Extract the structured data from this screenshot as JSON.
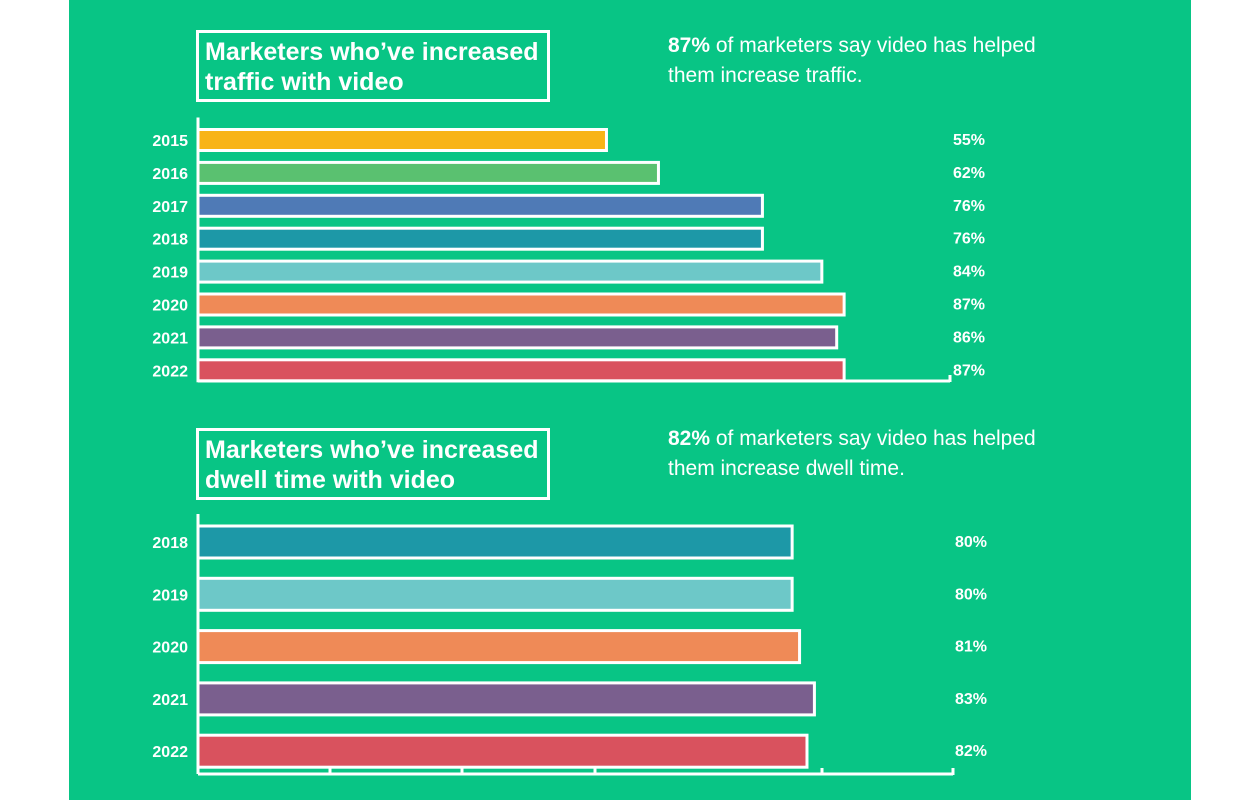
{
  "chart_data": [
    {
      "type": "bar",
      "orientation": "horizontal",
      "title_lines": [
        "Marketers who’ve increased",
        "traffic with video"
      ],
      "headline_value": "87%",
      "headline_text_lines": [
        "of marketers say video has helped",
        "them increase traffic."
      ],
      "categories": [
        "2015",
        "2016",
        "2017",
        "2018",
        "2019",
        "2020",
        "2021",
        "2022"
      ],
      "values": [
        55,
        62,
        76,
        76,
        84,
        87,
        86,
        87
      ],
      "value_labels": [
        "55%",
        "62%",
        "76%",
        "76%",
        "84%",
        "87%",
        "86%",
        "87%"
      ],
      "bar_colors": [
        "#f8b417",
        "#5ac170",
        "#4f7ab6",
        "#1d98a7",
        "#6dc8c8",
        "#ef8a57",
        "#7a5f8e",
        "#d9525e"
      ],
      "xlabel": "",
      "ylabel": "",
      "grid": false
    },
    {
      "type": "bar",
      "orientation": "horizontal",
      "title_lines": [
        "Marketers who’ve increased",
        "dwell time with video"
      ],
      "headline_value": "82%",
      "headline_text_lines": [
        "of marketers say video has helped",
        "them increase dwell time."
      ],
      "categories": [
        "2018",
        "2019",
        "2020",
        "2021",
        "2022"
      ],
      "values": [
        80,
        80,
        81,
        83,
        82
      ],
      "value_labels": [
        "80%",
        "80%",
        "81%",
        "83%",
        "82%"
      ],
      "bar_colors": [
        "#1d98a7",
        "#6dc8c8",
        "#ef8a57",
        "#7a5f8e",
        "#d9525e"
      ],
      "xlabel": "",
      "ylabel": "",
      "grid": false
    }
  ],
  "colors": {
    "background": "#08c585",
    "outline": "#ffffff"
  }
}
